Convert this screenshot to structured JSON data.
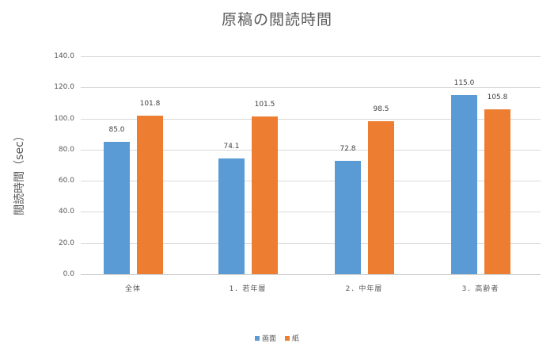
{
  "chart_data": {
    "type": "bar",
    "title": "原稿の閲読時間",
    "xlabel": "",
    "ylabel": "閲読時間（sec）",
    "ylim": [
      0,
      140
    ],
    "yticks": [
      "0.0",
      "20.0",
      "40.0",
      "60.0",
      "80.0",
      "100.0",
      "120.0",
      "140.0"
    ],
    "grid": true,
    "legend_position": "bottom",
    "categories": [
      "全体",
      "1．若年層",
      "2．中年層",
      "3．高齢者"
    ],
    "series": [
      {
        "name": "画面",
        "color": "#5b9bd5",
        "values": [
          85.0,
          74.1,
          72.8,
          115.0
        ],
        "labels": [
          "85.0",
          "74.1",
          "72.8",
          "115.0"
        ]
      },
      {
        "name": "紙",
        "color": "#ed7d31",
        "values": [
          101.8,
          101.5,
          98.5,
          105.8
        ],
        "labels": [
          "101.8",
          "101.5",
          "98.5",
          "105.8"
        ]
      }
    ]
  }
}
